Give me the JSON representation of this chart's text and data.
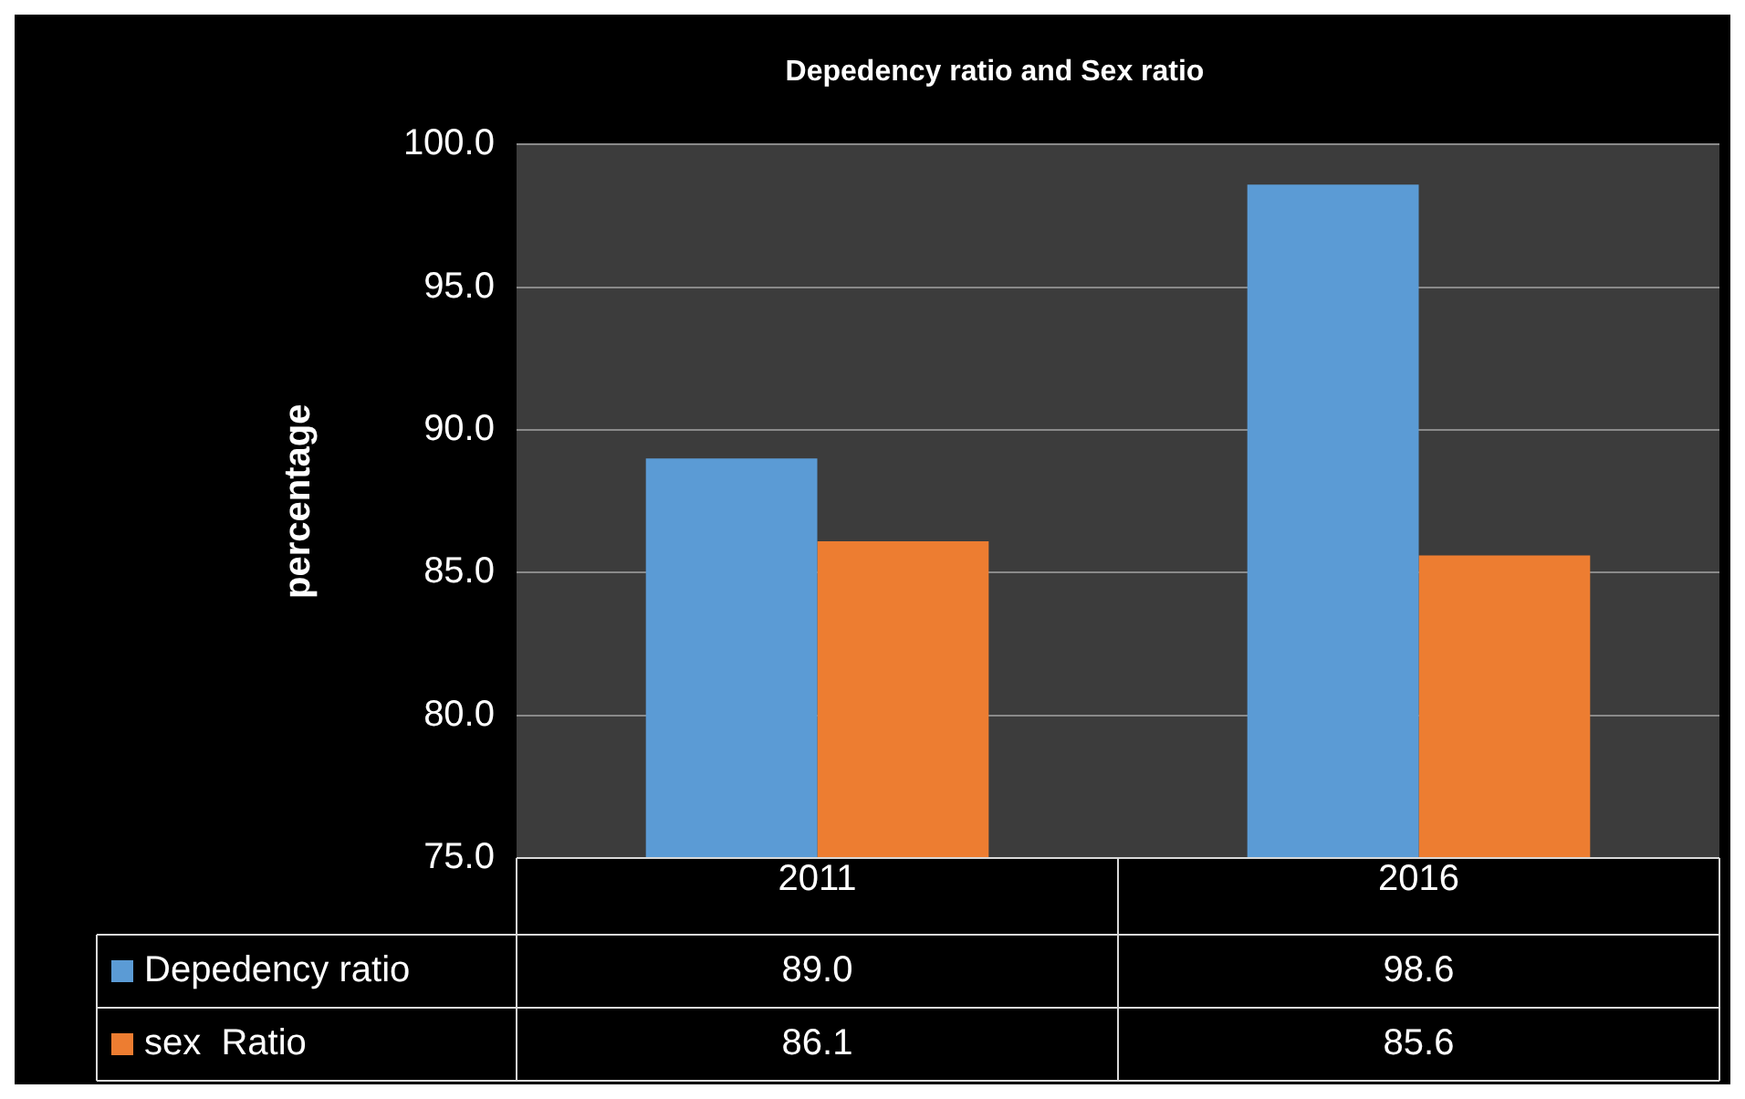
{
  "chart_data": {
    "type": "bar",
    "title": "Depedency ratio and Sex ratio",
    "ylabel": "percentage",
    "categories": [
      "2011",
      "2016"
    ],
    "series": [
      {
        "name": "Depedency ratio",
        "color": "#5b9bd5",
        "values": [
          89.0,
          98.6
        ],
        "value_labels": [
          "89.0",
          "98.6"
        ]
      },
      {
        "name": "sex  Ratio",
        "color": "#ed7d31",
        "values": [
          86.1,
          85.6
        ],
        "value_labels": [
          "86.1",
          "85.6"
        ]
      }
    ],
    "ylim": [
      75,
      100
    ],
    "yticks": [
      {
        "value": 75,
        "label": "75.0"
      },
      {
        "value": 80,
        "label": "80.0"
      },
      {
        "value": 85,
        "label": "85.0"
      },
      {
        "value": 90,
        "label": "90.0"
      },
      {
        "value": 95,
        "label": "95.0"
      },
      {
        "value": 100,
        "label": "100.0"
      }
    ],
    "grid": "y",
    "legend": "bottom"
  }
}
